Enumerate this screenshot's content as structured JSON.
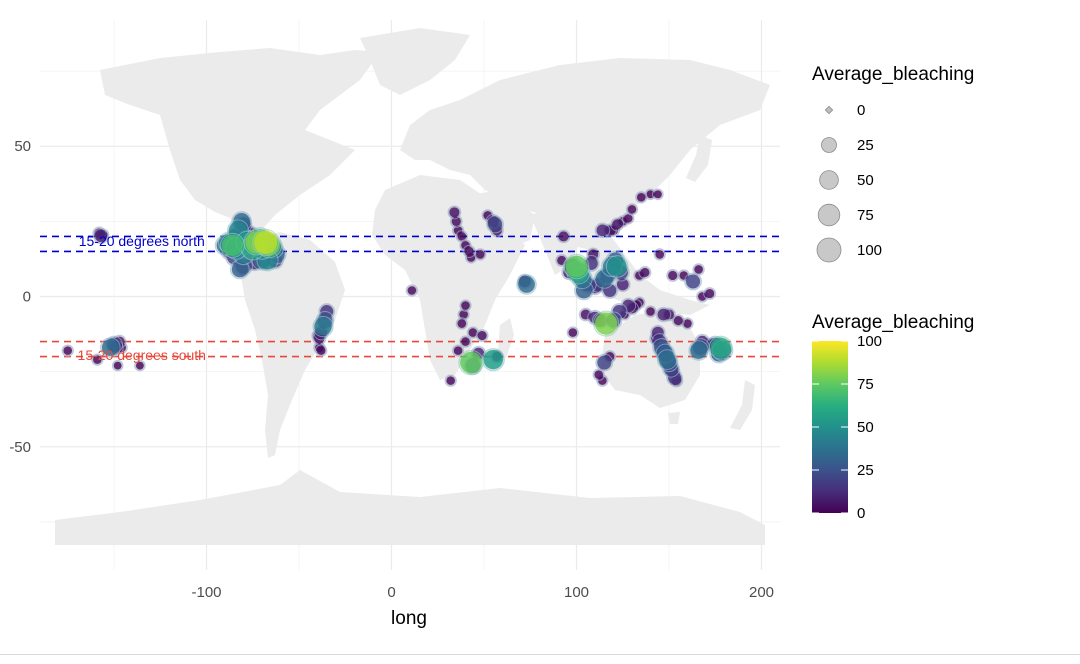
{
  "chart_data": {
    "type": "scatter",
    "title": "",
    "xlabel": "long",
    "ylabel": "",
    "xlim": [
      -190,
      210
    ],
    "ylim": [
      -91,
      92
    ],
    "x_ticks": [
      -100,
      0,
      100,
      200
    ],
    "x_tick_labels": [
      "-100",
      "0",
      "100",
      "200"
    ],
    "y_ticks": [
      -50,
      0,
      50
    ],
    "y_tick_labels": [
      "-50",
      "0",
      "50"
    ],
    "grid": true,
    "legend_position": "right",
    "size_legend": {
      "title": "Average_bleaching",
      "values": [
        0,
        25,
        50,
        75,
        100
      ],
      "labels": [
        "0",
        "25",
        "50",
        "75",
        "100"
      ]
    },
    "color_legend": {
      "title": "Average_bleaching",
      "colormap": "viridis",
      "range": [
        0,
        100
      ],
      "ticks": [
        0,
        25,
        50,
        75,
        100
      ],
      "labels": [
        "0",
        "25",
        "50",
        "75",
        "100"
      ]
    },
    "hlines": [
      {
        "y": 20,
        "color": "#0000cc",
        "style": "dashed"
      },
      {
        "y": 15,
        "color": "#0000cc",
        "style": "dashed"
      },
      {
        "y": -15,
        "color": "#e8483b",
        "style": "dashed"
      },
      {
        "y": -20,
        "color": "#e8483b",
        "style": "dashed"
      }
    ],
    "annotations": [
      {
        "text": "15-20 degrees north",
        "x": -135,
        "y": 18.5,
        "color": "#0000cc"
      },
      {
        "text": "15-20 degrees south",
        "x": -135,
        "y": -19.5,
        "color": "#e8483b"
      }
    ],
    "points": [
      {
        "x": -158,
        "y": 21,
        "v": 5
      },
      {
        "x": -157,
        "y": 20,
        "v": 10
      },
      {
        "x": -156,
        "y": 20.5,
        "v": 3
      },
      {
        "x": -88,
        "y": 18,
        "v": 40
      },
      {
        "x": -86,
        "y": 17,
        "v": 70
      },
      {
        "x": -84,
        "y": 20,
        "v": 30
      },
      {
        "x": -83,
        "y": 22,
        "v": 45
      },
      {
        "x": -81,
        "y": 25,
        "v": 35
      },
      {
        "x": -80,
        "y": 24,
        "v": 20
      },
      {
        "x": -79,
        "y": 22,
        "v": 15
      },
      {
        "x": -78,
        "y": 18,
        "v": 55
      },
      {
        "x": -77,
        "y": 19,
        "v": 25
      },
      {
        "x": -76,
        "y": 21,
        "v": 10
      },
      {
        "x": -75,
        "y": 16,
        "v": 60
      },
      {
        "x": -73,
        "y": 18,
        "v": 80
      },
      {
        "x": -71,
        "y": 19,
        "v": 65
      },
      {
        "x": -70,
        "y": 16,
        "v": 50
      },
      {
        "x": -68,
        "y": 18,
        "v": 90
      },
      {
        "x": -66,
        "y": 17,
        "v": 75
      },
      {
        "x": -64,
        "y": 16,
        "v": 40
      },
      {
        "x": -62,
        "y": 14,
        "v": 30
      },
      {
        "x": -63,
        "y": 12,
        "v": 20
      },
      {
        "x": -67,
        "y": 12,
        "v": 45
      },
      {
        "x": -70,
        "y": 12,
        "v": 35
      },
      {
        "x": -74,
        "y": 11,
        "v": 10
      },
      {
        "x": -80,
        "y": 10,
        "v": 25
      },
      {
        "x": -82,
        "y": 9,
        "v": 30
      },
      {
        "x": -85,
        "y": 13,
        "v": 20
      },
      {
        "x": -88,
        "y": 15,
        "v": 15
      },
      {
        "x": -90,
        "y": 17,
        "v": 35
      },
      {
        "x": -84,
        "y": 16,
        "v": 50
      },
      {
        "x": -80,
        "y": 14,
        "v": 40
      },
      {
        "x": -152,
        "y": -17,
        "v": 35
      },
      {
        "x": -150,
        "y": -16,
        "v": 20
      },
      {
        "x": -149,
        "y": -17,
        "v": 10
      },
      {
        "x": -147,
        "y": -15,
        "v": 5
      },
      {
        "x": -146,
        "y": -17,
        "v": 3
      },
      {
        "x": -159,
        "y": -21,
        "v": 2
      },
      {
        "x": -175,
        "y": -18,
        "v": 2
      },
      {
        "x": -148,
        "y": -23,
        "v": 1
      },
      {
        "x": -136,
        "y": -23,
        "v": 1
      },
      {
        "x": -35,
        "y": -5,
        "v": 15
      },
      {
        "x": -36,
        "y": -8,
        "v": 25
      },
      {
        "x": -37,
        "y": -10,
        "v": 40
      },
      {
        "x": -38,
        "y": -12,
        "v": 10
      },
      {
        "x": -39,
        "y": -14,
        "v": 5
      },
      {
        "x": -39,
        "y": -17,
        "v": 2
      },
      {
        "x": -38,
        "y": -18,
        "v": 2
      },
      {
        "x": -40,
        "y": -13,
        "v": 2
      },
      {
        "x": 34,
        "y": 28,
        "v": 5
      },
      {
        "x": 35,
        "y": 25,
        "v": 3
      },
      {
        "x": 36,
        "y": 22,
        "v": 2
      },
      {
        "x": 38,
        "y": 20,
        "v": 2
      },
      {
        "x": 40,
        "y": 17,
        "v": 2
      },
      {
        "x": 42,
        "y": 15,
        "v": 3
      },
      {
        "x": 43,
        "y": 13,
        "v": 2
      },
      {
        "x": 48,
        "y": 14,
        "v": 2
      },
      {
        "x": 52,
        "y": 27,
        "v": 2
      },
      {
        "x": 55,
        "y": 25,
        "v": 8
      },
      {
        "x": 56,
        "y": 24,
        "v": 20
      },
      {
        "x": 57,
        "y": 22,
        "v": 5
      },
      {
        "x": 73,
        "y": 4,
        "v": 35
      },
      {
        "x": 72,
        "y": 5,
        "v": 10
      },
      {
        "x": 93,
        "y": 20,
        "v": 5
      },
      {
        "x": 92,
        "y": 12,
        "v": 3
      },
      {
        "x": 96,
        "y": 8,
        "v": 10
      },
      {
        "x": 98,
        "y": 10,
        "v": 30
      },
      {
        "x": 100,
        "y": 10,
        "v": 75
      },
      {
        "x": 101,
        "y": 8,
        "v": 60
      },
      {
        "x": 103,
        "y": 6,
        "v": 40
      },
      {
        "x": 104,
        "y": 2,
        "v": 30
      },
      {
        "x": 106,
        "y": 4,
        "v": 20
      },
      {
        "x": 108,
        "y": 11,
        "v": 15
      },
      {
        "x": 109,
        "y": 14,
        "v": 5
      },
      {
        "x": 110,
        "y": 3,
        "v": 10
      },
      {
        "x": 112,
        "y": 4,
        "v": 15
      },
      {
        "x": 115,
        "y": 6,
        "v": 35
      },
      {
        "x": 117,
        "y": 7,
        "v": 25
      },
      {
        "x": 119,
        "y": 10,
        "v": 40
      },
      {
        "x": 121,
        "y": 12,
        "v": 30
      },
      {
        "x": 122,
        "y": 10,
        "v": 50
      },
      {
        "x": 124,
        "y": 8,
        "v": 20
      },
      {
        "x": 125,
        "y": 4,
        "v": 10
      },
      {
        "x": 118,
        "y": 2,
        "v": 15
      },
      {
        "x": 114,
        "y": 22,
        "v": 10
      },
      {
        "x": 118,
        "y": 22,
        "v": 5
      },
      {
        "x": 120,
        "y": 22,
        "v": 3
      },
      {
        "x": 122,
        "y": 24,
        "v": 5
      },
      {
        "x": 125,
        "y": 25,
        "v": 2
      },
      {
        "x": 128,
        "y": 26,
        "v": 2
      },
      {
        "x": 130,
        "y": 29,
        "v": 2
      },
      {
        "x": 135,
        "y": 33,
        "v": 2
      },
      {
        "x": 140,
        "y": 34,
        "v": 1
      },
      {
        "x": 144,
        "y": 34,
        "v": 1
      },
      {
        "x": 137,
        "y": 8,
        "v": 3
      },
      {
        "x": 134,
        "y": 7,
        "v": 2
      },
      {
        "x": 145,
        "y": 14,
        "v": 2
      },
      {
        "x": 152,
        "y": 7,
        "v": 3
      },
      {
        "x": 158,
        "y": 7,
        "v": 2
      },
      {
        "x": 163,
        "y": 5,
        "v": 20
      },
      {
        "x": 168,
        "y": 0,
        "v": 2
      },
      {
        "x": 172,
        "y": 1,
        "v": 3
      },
      {
        "x": 166,
        "y": 9,
        "v": 2
      },
      {
        "x": 105,
        "y": -6,
        "v": 5
      },
      {
        "x": 110,
        "y": -7,
        "v": 10
      },
      {
        "x": 113,
        "y": -8,
        "v": 15
      },
      {
        "x": 116,
        "y": -9,
        "v": 80
      },
      {
        "x": 120,
        "y": -8,
        "v": 20
      },
      {
        "x": 123,
        "y": -5,
        "v": 15
      },
      {
        "x": 128,
        "y": -3,
        "v": 10
      },
      {
        "x": 130,
        "y": -4,
        "v": 5
      },
      {
        "x": 132,
        "y": -3,
        "v": 3
      },
      {
        "x": 134,
        "y": -2,
        "v": 2
      },
      {
        "x": 126,
        "y": -6,
        "v": 2
      },
      {
        "x": 140,
        "y": -5,
        "v": 2
      },
      {
        "x": 147,
        "y": -6,
        "v": 10
      },
      {
        "x": 150,
        "y": -6,
        "v": 5
      },
      {
        "x": 155,
        "y": -8,
        "v": 3
      },
      {
        "x": 160,
        "y": -9,
        "v": 2
      },
      {
        "x": 98,
        "y": -12,
        "v": 2
      },
      {
        "x": 145,
        "y": -15,
        "v": 15
      },
      {
        "x": 146,
        "y": -17,
        "v": 25
      },
      {
        "x": 147,
        "y": -18,
        "v": 20
      },
      {
        "x": 148,
        "y": -19,
        "v": 30
      },
      {
        "x": 149,
        "y": -21,
        "v": 35
      },
      {
        "x": 150,
        "y": -22,
        "v": 25
      },
      {
        "x": 151,
        "y": -24,
        "v": 20
      },
      {
        "x": 153,
        "y": -27,
        "v": 15
      },
      {
        "x": 154,
        "y": -28,
        "v": 5
      },
      {
        "x": 152,
        "y": -25,
        "v": 10
      },
      {
        "x": 144,
        "y": -12,
        "v": 10
      },
      {
        "x": 143,
        "y": -14,
        "v": 5
      },
      {
        "x": 166,
        "y": -18,
        "v": 35
      },
      {
        "x": 167,
        "y": -17,
        "v": 25
      },
      {
        "x": 168,
        "y": -15,
        "v": 10
      },
      {
        "x": 178,
        "y": -17,
        "v": 60
      },
      {
        "x": 179,
        "y": -18,
        "v": 40
      },
      {
        "x": 177,
        "y": -19,
        "v": 30
      },
      {
        "x": 175,
        "y": -16,
        "v": 20
      },
      {
        "x": 172,
        "y": -16,
        "v": 5
      },
      {
        "x": 115,
        "y": -22,
        "v": 20
      },
      {
        "x": 118,
        "y": -20,
        "v": 3
      },
      {
        "x": 114,
        "y": -28,
        "v": 2
      },
      {
        "x": 112,
        "y": -26,
        "v": 2
      },
      {
        "x": 43,
        "y": -22,
        "v": 75
      },
      {
        "x": 44,
        "y": -23,
        "v": 25
      },
      {
        "x": 47,
        "y": -19,
        "v": 10
      },
      {
        "x": 49,
        "y": -13,
        "v": 3
      },
      {
        "x": 55,
        "y": -21,
        "v": 55
      },
      {
        "x": 57,
        "y": -20,
        "v": 5
      },
      {
        "x": 40,
        "y": -15,
        "v": 2
      },
      {
        "x": 32,
        "y": -28,
        "v": 2
      },
      {
        "x": 39,
        "y": -6,
        "v": 2
      },
      {
        "x": 40,
        "y": -3,
        "v": 2
      },
      {
        "x": 44,
        "y": -12,
        "v": 2
      },
      {
        "x": 11,
        "y": 2,
        "v": 2
      },
      {
        "x": 38,
        "y": -9,
        "v": 2
      },
      {
        "x": 36,
        "y": -18,
        "v": 2
      }
    ]
  }
}
